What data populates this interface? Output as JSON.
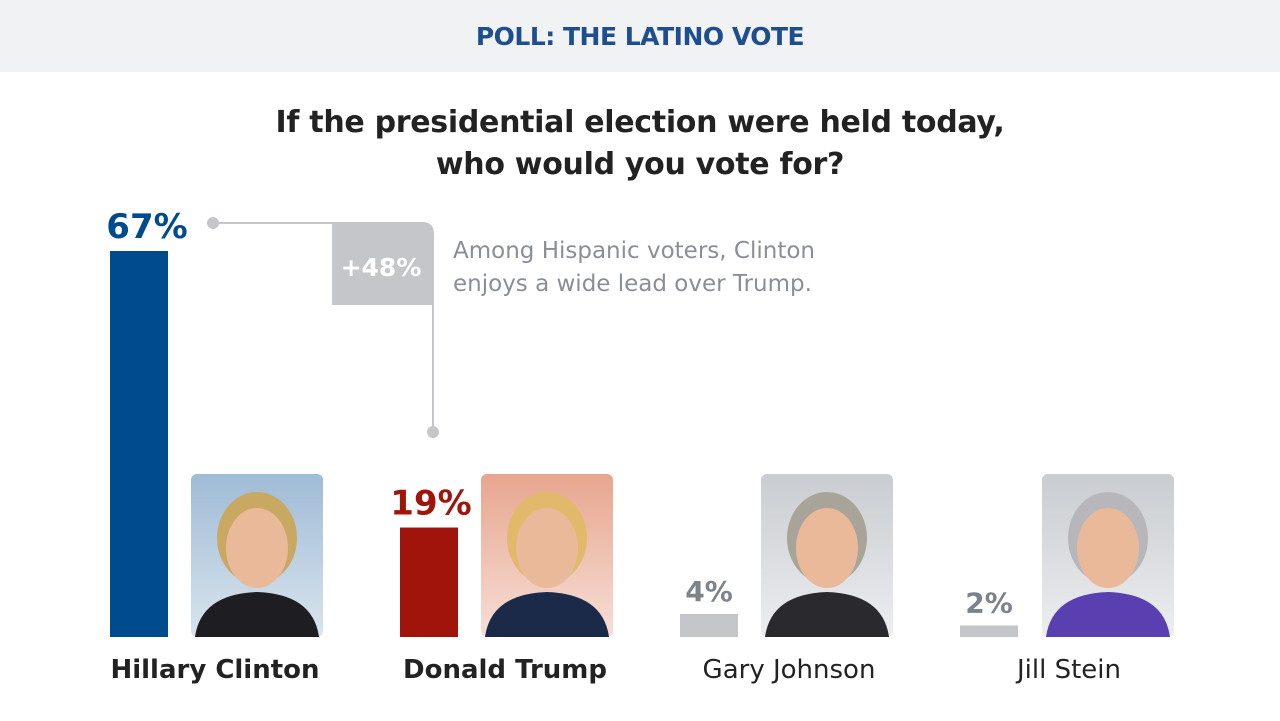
{
  "header": {
    "title": "POLL: THE LATINO VOTE"
  },
  "question": {
    "line1": "If the presidential election were held today,",
    "line2": "who would you vote for?"
  },
  "annotation": {
    "badge": "+48%",
    "line1": "Among Hispanic voters, Clinton",
    "line2": "enjoys a wide lead over Trump."
  },
  "colors": {
    "clinton": "#004b8d",
    "trump": "#a0140c",
    "other": "#c4c6ca",
    "other_label": "#7d828b",
    "connector": "#c4c6ca"
  },
  "chart_data": {
    "type": "bar",
    "categories": [
      "Hillary Clinton",
      "Donald Trump",
      "Gary Johnson",
      "Jill Stein"
    ],
    "values": [
      67,
      19,
      4,
      2
    ],
    "labels": [
      "67%",
      "19%",
      "4%",
      "2%"
    ],
    "title": "If the presidential election were held today, who would you vote for?",
    "ylim": [
      0,
      67
    ],
    "grid": false,
    "unit": "%"
  },
  "photos": [
    "hillary-clinton-photo",
    "donald-trump-photo",
    "gary-johnson-photo",
    "jill-stein-photo"
  ]
}
